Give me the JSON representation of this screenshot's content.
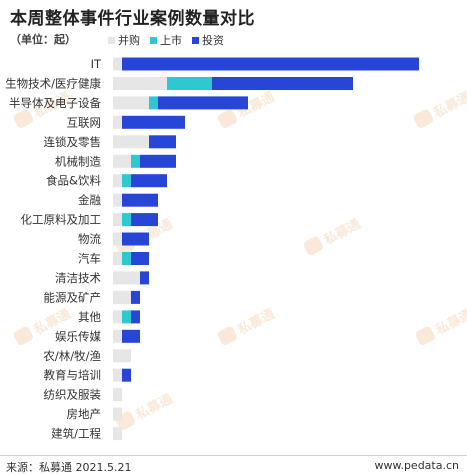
{
  "title": "本周整体事件行业案例数量对比",
  "unit_label": "（单位：起）",
  "watermark_text": "私募通",
  "footer": {
    "source": "来源：私募通 2021.5.21",
    "website": "www.pedata.cn"
  },
  "colors": {
    "merger": "#e6e6e6",
    "ipo": "#2fc7d0",
    "investment": "#2746d8",
    "watermark": "#e8892b"
  },
  "chart_data": {
    "type": "bar",
    "orientation": "horizontal",
    "stacked": true,
    "categories": [
      "IT",
      "生物技术/医疗健康",
      "半导体及电子设备",
      "互联网",
      "连锁及零售",
      "机械制造",
      "食品&饮料",
      "金融",
      "化工原料及加工",
      "物流",
      "汽车",
      "清洁技术",
      "能源及矿产",
      "其他",
      "娱乐传媒",
      "农/林/牧/渔",
      "教育与培训",
      "纺织及服装",
      "房地产",
      "建筑/工程"
    ],
    "series": [
      {
        "name": "并购",
        "values": [
          3,
          18,
          12,
          3,
          12,
          6,
          3,
          3,
          3,
          3,
          3,
          9,
          6,
          3,
          3,
          6,
          3,
          3,
          3,
          3
        ]
      },
      {
        "name": "上市",
        "values": [
          0,
          15,
          3,
          0,
          0,
          3,
          3,
          0,
          3,
          0,
          3,
          0,
          0,
          3,
          0,
          0,
          0,
          0,
          0,
          0
        ]
      },
      {
        "name": "投资",
        "values": [
          99,
          47,
          30,
          21,
          9,
          12,
          12,
          12,
          9,
          9,
          6,
          3,
          3,
          3,
          6,
          0,
          3,
          0,
          0,
          0
        ]
      }
    ],
    "legend_position": "top",
    "grid": false
  }
}
